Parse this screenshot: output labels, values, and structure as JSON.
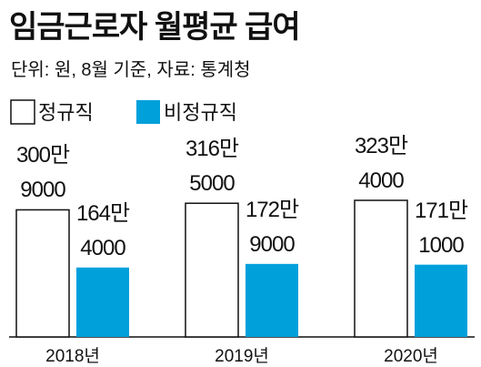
{
  "chart_data": {
    "type": "bar",
    "title": "임금근로자 월평균 급여",
    "subtitle": "단위: 원, 8월 기준, 자료: 통계청",
    "categories": [
      "2018년",
      "2019년",
      "2020년"
    ],
    "series": [
      {
        "name": "정규직",
        "color": "#ffffff",
        "values": [
          3009000,
          3165000,
          3234000
        ],
        "value_labels": [
          "300만\n9000",
          "316만\n5000",
          "323만\n4000"
        ]
      },
      {
        "name": "비정규직",
        "color": "#00a0db",
        "values": [
          1644000,
          1729000,
          1711000
        ],
        "value_labels": [
          "164만\n4000",
          "172만\n9000",
          "171만\n1000"
        ]
      }
    ]
  }
}
